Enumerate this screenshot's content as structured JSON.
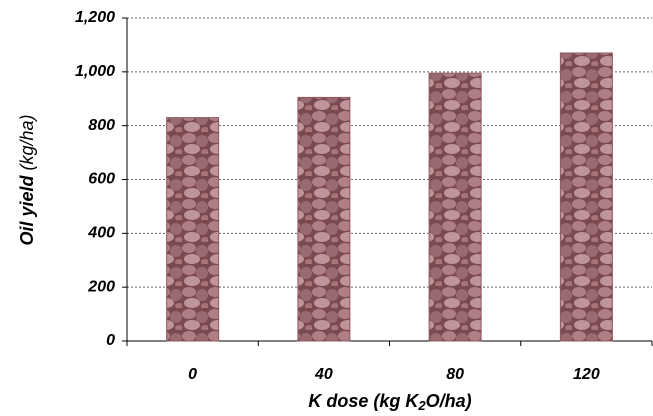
{
  "chart_data": {
    "type": "bar",
    "categories": [
      "0",
      "40",
      "80",
      "120"
    ],
    "values": [
      830,
      905,
      995,
      1070
    ],
    "color": "#8e5a60",
    "ylim": [
      0,
      1200
    ],
    "yticks": [
      0,
      200,
      400,
      600,
      800,
      {
        "value": 1000,
        "label": "1,000"
      },
      {
        "value": 1200,
        "label": "1,200"
      }
    ],
    "grid": true,
    "x_label": [
      "K dose (kg K",
      "2",
      "O/ha)"
    ],
    "y_label": [
      "Oil yield",
      "(kg/ha)"
    ]
  }
}
